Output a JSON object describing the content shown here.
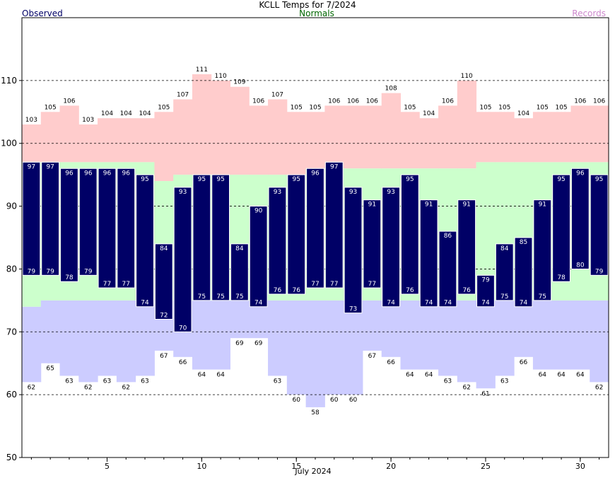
{
  "chart_data": {
    "type": "bar",
    "title": "KCLL Temps for 7/2024",
    "xlabel": "July 2024",
    "ylabel": "",
    "ylim": [
      50,
      120
    ],
    "yticks": [
      50,
      60,
      70,
      80,
      90,
      100,
      110
    ],
    "xticks": [
      5,
      10,
      15,
      20,
      25,
      30
    ],
    "grid": true,
    "legend": [
      {
        "name": "Observed",
        "color": "#000066",
        "position": "top-left"
      },
      {
        "name": "Normals",
        "color": "#006600",
        "position": "top-center"
      },
      {
        "name": "Records",
        "color": "#cc88cc",
        "position": "top-right"
      }
    ],
    "days": [
      1,
      2,
      3,
      4,
      5,
      6,
      7,
      8,
      9,
      10,
      11,
      12,
      13,
      14,
      15,
      16,
      17,
      18,
      19,
      20,
      21,
      22,
      23,
      24,
      25,
      26,
      27,
      28,
      29,
      30,
      31
    ],
    "observed_high": [
      97,
      97,
      96,
      96,
      96,
      96,
      95,
      84,
      93,
      95,
      95,
      84,
      90,
      93,
      95,
      96,
      97,
      93,
      91,
      93,
      95,
      91,
      86,
      91,
      79,
      84,
      85,
      91,
      95,
      96,
      95
    ],
    "observed_low": [
      79,
      79,
      78,
      79,
      77,
      77,
      74,
      72,
      70,
      75,
      75,
      75,
      74,
      76,
      76,
      77,
      77,
      73,
      77,
      74,
      76,
      74,
      74,
      76,
      74,
      75,
      74,
      75,
      78,
      80,
      79
    ],
    "normal_high": [
      97,
      97,
      97,
      97,
      97,
      97,
      97,
      94,
      95,
      95,
      95,
      95,
      95,
      95,
      95,
      96,
      96,
      96,
      96,
      96,
      96,
      96,
      96,
      96,
      97,
      97,
      97,
      97,
      97,
      97,
      97
    ],
    "normal_low": [
      74,
      75,
      75,
      75,
      75,
      75,
      75,
      75,
      75,
      75,
      75,
      75,
      75,
      75,
      75,
      75,
      75,
      75,
      75,
      75,
      75,
      75,
      75,
      75,
      75,
      75,
      75,
      75,
      75,
      75,
      75
    ],
    "record_high": [
      103,
      105,
      106,
      103,
      104,
      104,
      104,
      105,
      107,
      111,
      110,
      109,
      106,
      107,
      105,
      105,
      106,
      106,
      106,
      108,
      105,
      104,
      106,
      110,
      105,
      105,
      104,
      105,
      105,
      106,
      106
    ],
    "record_low": [
      62,
      65,
      63,
      62,
      63,
      62,
      63,
      67,
      66,
      64,
      64,
      69,
      69,
      63,
      60,
      58,
      60,
      60,
      67,
      66,
      64,
      64,
      63,
      62,
      61,
      63,
      66,
      64,
      64,
      64,
      62
    ],
    "colors": {
      "observed": "#000066",
      "normal": "#ccffcc",
      "record_high": "#ffcccc",
      "record_low": "#ccccff",
      "background": "#ffffff",
      "grid": "#000000"
    }
  }
}
